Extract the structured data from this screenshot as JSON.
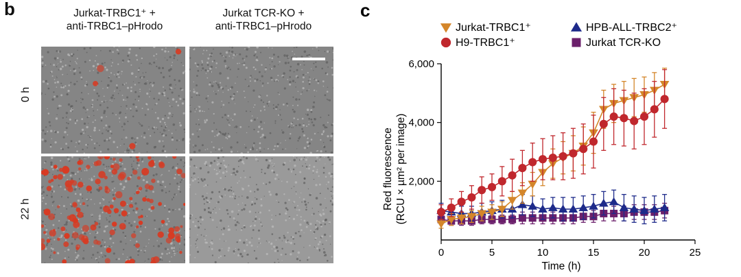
{
  "panel_b": {
    "letter": "b",
    "col_titles": [
      {
        "line1": "Jurkat-TRBC1⁺ +",
        "line2": "anti-TRBC1–pHrodo"
      },
      {
        "line1": "Jurkat TCR-KO +",
        "line2": "anti-TRBC1–pHrodo"
      }
    ],
    "row_labels": [
      "0 h",
      "22 h"
    ]
  },
  "chart_data": {
    "panel_letter": "c",
    "type": "line",
    "xlabel": "Time (h)",
    "ylabel_line1": "Red fluorescence",
    "ylabel_line2": "(RCU × µm² per image)",
    "xlim": [
      0,
      25
    ],
    "ylim": [
      0,
      6000
    ],
    "xticks": [
      0,
      5,
      10,
      15,
      20,
      25
    ],
    "yticks": [
      2000,
      4000,
      6000
    ],
    "ytick_labels": [
      "2,000",
      "4,000",
      "6,000"
    ],
    "x": [
      0,
      1,
      2,
      3,
      4,
      5,
      6,
      7,
      8,
      9,
      10,
      11,
      12,
      13,
      14,
      15,
      16,
      17,
      18,
      19,
      20,
      21,
      22
    ],
    "series": [
      {
        "name": "Jurkat-TRBC1⁺",
        "color": "#d4862a",
        "marker": "triangle-down",
        "values": [
          550,
          700,
          750,
          800,
          900,
          950,
          1050,
          1350,
          1600,
          1900,
          2300,
          2600,
          2800,
          2950,
          3200,
          3650,
          4450,
          4650,
          4750,
          4850,
          4950,
          5100,
          5300
        ],
        "errors": [
          150,
          200,
          200,
          200,
          250,
          250,
          250,
          300,
          350,
          400,
          450,
          500,
          550,
          600,
          650,
          700,
          650,
          650,
          650,
          650,
          600,
          600,
          550
        ]
      },
      {
        "name": "H9-TRBC1⁺",
        "color": "#c0272d",
        "marker": "circle",
        "values": [
          950,
          1100,
          1300,
          1450,
          1700,
          1800,
          2000,
          2200,
          2450,
          2650,
          2750,
          2800,
          2850,
          2950,
          3100,
          3350,
          3950,
          4200,
          4150,
          4050,
          4200,
          4450,
          4800
        ],
        "errors": [
          250,
          300,
          350,
          400,
          450,
          450,
          500,
          550,
          600,
          650,
          700,
          750,
          800,
          850,
          850,
          900,
          900,
          950,
          950,
          950,
          950,
          950,
          1000
        ]
      },
      {
        "name": "HPB-ALL-TRBC2⁺",
        "color": "#1d2a8a",
        "marker": "triangle-up",
        "values": [
          1000,
          950,
          900,
          900,
          950,
          1000,
          1050,
          1050,
          1200,
          1150,
          1050,
          1100,
          1050,
          1050,
          1100,
          1150,
          1250,
          1300,
          1100,
          1050,
          1000,
          1050,
          1100
        ],
        "errors": [
          250,
          250,
          250,
          250,
          300,
          300,
          300,
          300,
          350,
          350,
          350,
          350,
          400,
          400,
          400,
          400,
          400,
          400,
          450,
          450,
          450,
          450,
          450
        ]
      },
      {
        "name": "Jurkat TCR-KO",
        "color": "#6b1f6b",
        "marker": "square",
        "values": [
          700,
          650,
          650,
          650,
          700,
          700,
          700,
          700,
          750,
          750,
          750,
          750,
          750,
          750,
          800,
          800,
          900,
          900,
          900,
          950,
          950,
          950,
          1000
        ],
        "errors": [
          150,
          150,
          150,
          150,
          150,
          150,
          150,
          150,
          200,
          200,
          200,
          200,
          200,
          200,
          200,
          200,
          250,
          250,
          250,
          250,
          250,
          250,
          250
        ]
      }
    ]
  }
}
